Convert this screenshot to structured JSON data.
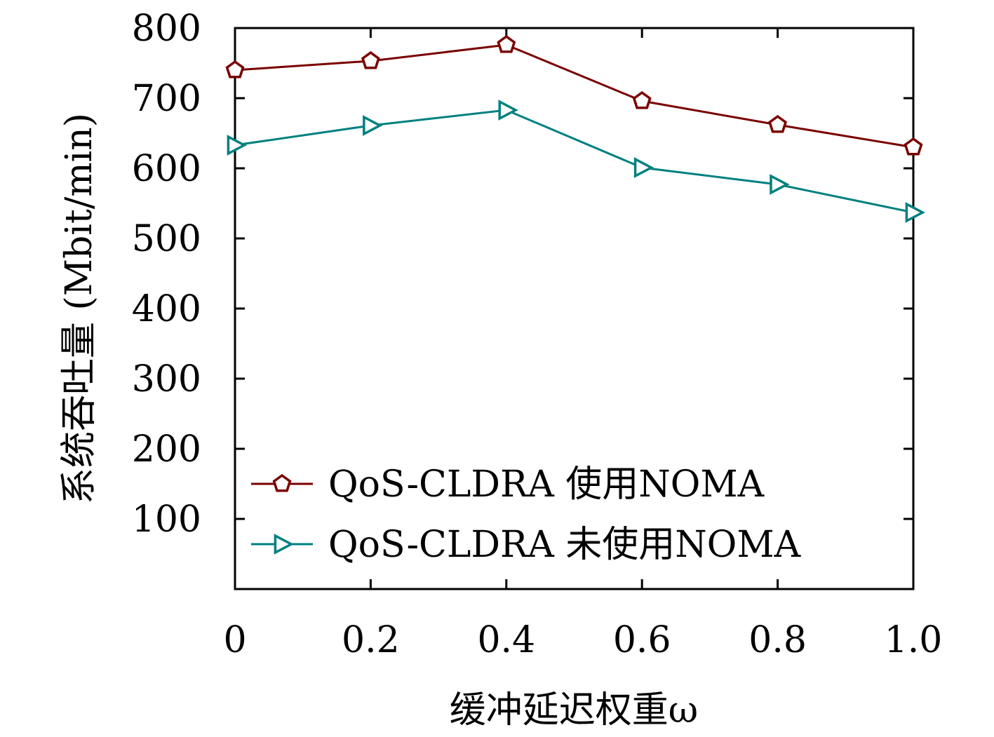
{
  "chart_data": {
    "type": "line",
    "title": "",
    "xlabel": "缓冲延迟权重ω",
    "ylabel": "系统吞吐量 (Mbit/min)",
    "x": [
      0,
      0.2,
      0.4,
      0.6,
      0.8,
      1.0
    ],
    "x_tick_labels": [
      "0",
      "0.2",
      "0.4",
      "0.6",
      "0.8",
      "1.0"
    ],
    "y_ticks": [
      100,
      200,
      300,
      400,
      500,
      600,
      700,
      800
    ],
    "xlim": [
      0,
      1.0
    ],
    "ylim": [
      0,
      800
    ],
    "grid": false,
    "legend_position": "bottom-right",
    "series": [
      {
        "name": "QoS-CLDRA 使用NOMA",
        "values": [
          740,
          753,
          776,
          696,
          662,
          630
        ],
        "color": "#7a0000",
        "marker": "pentagon"
      },
      {
        "name": "QoS-CLDRA 未使用NOMA",
        "values": [
          633,
          661,
          683,
          601,
          577,
          537
        ],
        "color": "#008080",
        "marker": "triangle-right"
      }
    ]
  }
}
